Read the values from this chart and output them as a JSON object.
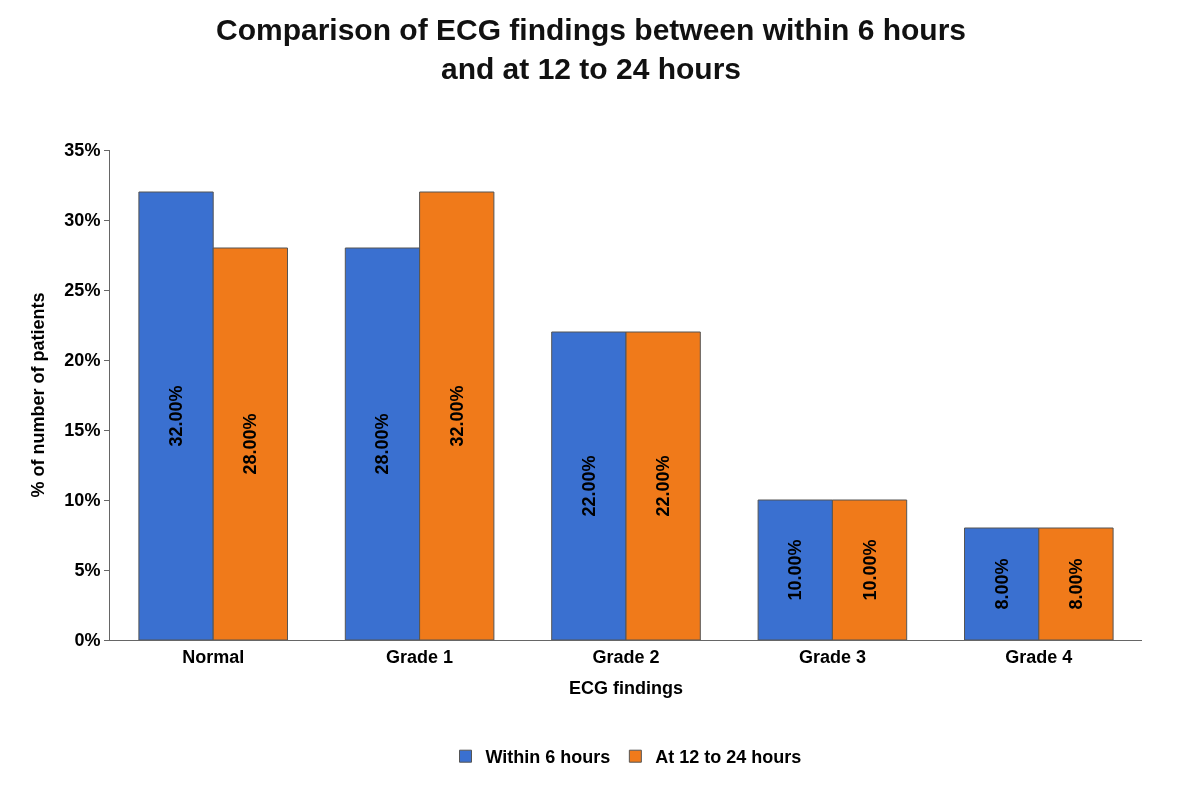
{
  "chart_data": {
    "type": "bar",
    "title": "Comparison of ECG findings between within 6 hours and at 12 to 24 hours",
    "xlabel": "ECG findings",
    "ylabel": "% of number of patients",
    "categories": [
      "Normal",
      "Grade 1",
      "Grade 2",
      "Grade 3",
      "Grade 4"
    ],
    "series": [
      {
        "name": "Within 6 hours",
        "color": "#3a70d0",
        "values": [
          32,
          28,
          22,
          10,
          8
        ],
        "value_labels": [
          "32.00%",
          "28.00%",
          "22.00%",
          "10.00%",
          "8.00%"
        ]
      },
      {
        "name": "At 12 to 24 hours",
        "color": "#f07a1a",
        "values": [
          28,
          32,
          22,
          10,
          8
        ],
        "value_labels": [
          "28.00%",
          "32.00%",
          "22.00%",
          "10.00%",
          "8.00%"
        ]
      }
    ],
    "ylim": [
      0,
      35
    ],
    "yticks": [
      {
        "value": 0,
        "label": "0%"
      },
      {
        "value": 5,
        "label": "5%"
      },
      {
        "value": 10,
        "label": "10%"
      },
      {
        "value": 15,
        "label": "15%"
      },
      {
        "value": 20,
        "label": "20%"
      },
      {
        "value": 25,
        "label": "25%"
      },
      {
        "value": 30,
        "label": "30%"
      },
      {
        "value": 35,
        "label": "35%"
      }
    ],
    "legend": "bottom"
  }
}
